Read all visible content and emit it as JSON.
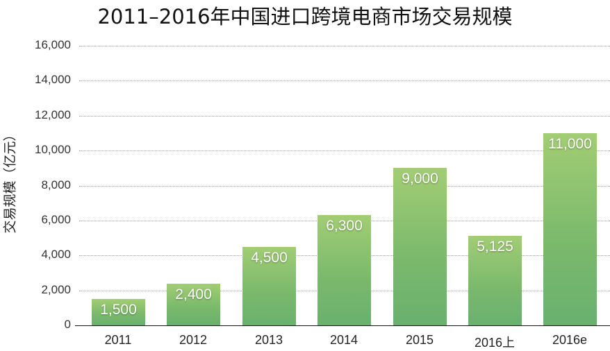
{
  "chart_data": {
    "type": "bar",
    "title": "2011–2016年中国进口跨境电商市场交易规模",
    "xlabel": "",
    "ylabel": "交易规模（亿元）",
    "ylim": [
      0,
      16000
    ],
    "yticks": [
      "0",
      "2,000",
      "4,000",
      "6,000",
      "8,000",
      "10,000",
      "12,000",
      "14,000",
      "16,000"
    ],
    "grid": true,
    "legend": "none",
    "categories": [
      "2011",
      "2012",
      "2013",
      "2014",
      "2015",
      "2016上",
      "2016e"
    ],
    "values": [
      1500,
      2400,
      4500,
      6300,
      9000,
      5125,
      11000
    ],
    "value_labels": [
      "1,500",
      "2,400",
      "4,500",
      "6,300",
      "9,000",
      "5,125",
      "11,000"
    ],
    "colors": {
      "bar_top": "#a2cd74",
      "bar_bottom": "#69b06f",
      "label": "#ffffff"
    }
  }
}
